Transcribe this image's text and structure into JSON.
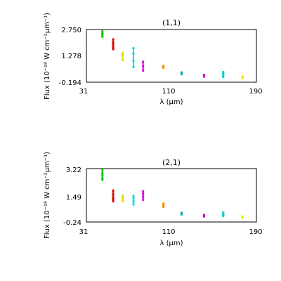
{
  "chart_data": [
    {
      "type": "scatter",
      "title": "(1,1)",
      "xlabel": "λ (μm)",
      "ylabel": "Flux (10⁻¹⁸ W cm⁻²μm⁻¹)",
      "xlim": [
        31,
        190
      ],
      "ylim": [
        -0.194,
        2.75
      ],
      "xticks": [
        "31",
        "110",
        "190"
      ],
      "yticks": [
        "2.750",
        "1.278",
        "-0.194"
      ],
      "grid": false,
      "series": [
        {
          "color": "#00cc00",
          "x": [
            46,
            46,
            46,
            46,
            46
          ],
          "y": [
            2.35,
            2.5,
            2.65,
            2.55,
            2.4
          ]
        },
        {
          "color": "#dd0000",
          "x": [
            56,
            56,
            56,
            56,
            56
          ],
          "y": [
            1.65,
            1.9,
            2.2,
            2.0,
            1.75
          ]
        },
        {
          "color": "#dddd00",
          "x": [
            65,
            65,
            65
          ],
          "y": [
            1.05,
            1.3,
            1.45
          ]
        },
        {
          "color": "#00dddd",
          "x": [
            75,
            75,
            75,
            75
          ],
          "y": [
            0.65,
            1.0,
            1.4,
            1.7
          ]
        },
        {
          "color": "#dd00dd",
          "x": [
            84,
            84,
            84
          ],
          "y": [
            0.45,
            0.7,
            0.95
          ]
        },
        {
          "color": "#ff8800",
          "x": [
            103,
            103,
            103
          ],
          "y": [
            0.62,
            0.67,
            0.72
          ]
        },
        {
          "color": "#00aaaa",
          "x": [
            120,
            120,
            120
          ],
          "y": [
            0.25,
            0.3,
            0.35
          ]
        },
        {
          "color": "#cc00cc",
          "x": [
            141,
            141,
            141
          ],
          "y": [
            0.12,
            0.17,
            0.22
          ]
        },
        {
          "color": "#00cccc",
          "x": [
            159,
            159,
            159,
            159
          ],
          "y": [
            0.1,
            0.2,
            0.3,
            0.38
          ]
        },
        {
          "color": "#eeee00",
          "x": [
            177,
            177,
            177
          ],
          "y": [
            0.02,
            0.07,
            0.12
          ]
        }
      ]
    },
    {
      "type": "scatter",
      "title": "(2,1)",
      "xlabel": "λ (μm)",
      "ylabel": "Flux (10⁻¹⁸ W cm⁻²μm⁻¹)",
      "xlim": [
        31,
        190
      ],
      "ylim": [
        -0.24,
        3.22
      ],
      "xticks": [
        "31",
        "110",
        "190"
      ],
      "yticks": [
        "3.22",
        "1.49",
        "-0.24"
      ],
      "grid": false,
      "series": [
        {
          "color": "#00cc00",
          "x": [
            46,
            46,
            46,
            46,
            46
          ],
          "y": [
            2.5,
            2.8,
            3.15,
            2.9,
            2.6
          ]
        },
        {
          "color": "#dd0000",
          "x": [
            56,
            56,
            56,
            56,
            56
          ],
          "y": [
            1.1,
            1.35,
            1.8,
            1.55,
            1.25
          ]
        },
        {
          "color": "#dddd00",
          "x": [
            65,
            65,
            65
          ],
          "y": [
            1.1,
            1.3,
            1.45
          ]
        },
        {
          "color": "#00dddd",
          "x": [
            75,
            75,
            75,
            75
          ],
          "y": [
            0.9,
            1.1,
            1.3,
            1.45
          ]
        },
        {
          "color": "#dd00dd",
          "x": [
            84,
            84,
            84,
            84
          ],
          "y": [
            1.2,
            1.4,
            1.6,
            1.75
          ]
        },
        {
          "color": "#ff8800",
          "x": [
            103,
            103,
            103
          ],
          "y": [
            0.75,
            0.85,
            0.95
          ]
        },
        {
          "color": "#00aaaa",
          "x": [
            120,
            120,
            120
          ],
          "y": [
            0.25,
            0.3,
            0.35
          ]
        },
        {
          "color": "#cc00cc",
          "x": [
            141,
            141,
            141
          ],
          "y": [
            0.12,
            0.17,
            0.22
          ]
        },
        {
          "color": "#00cccc",
          "x": [
            159,
            159,
            159,
            159
          ],
          "y": [
            0.15,
            0.22,
            0.3,
            0.38
          ]
        },
        {
          "color": "#eeee00",
          "x": [
            177,
            177,
            177
          ],
          "y": [
            0.02,
            0.07,
            0.12
          ]
        }
      ]
    }
  ]
}
